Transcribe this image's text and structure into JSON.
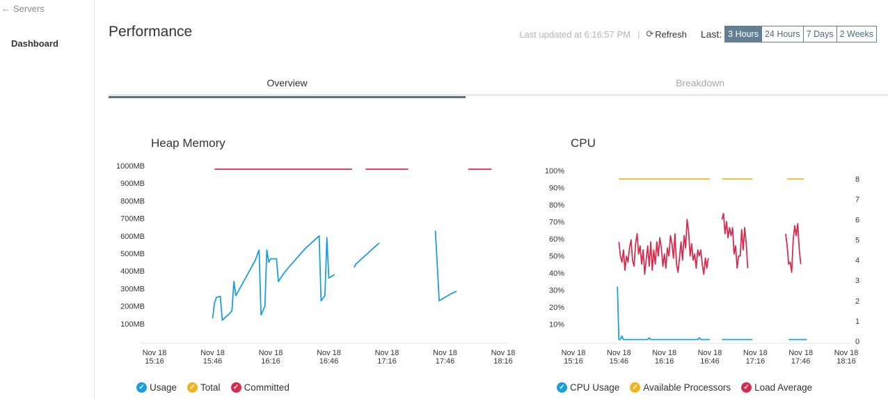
{
  "sidebar": {
    "back_label": "Servers",
    "dashboard_label": "Dashboard"
  },
  "header": {
    "title": "Performance",
    "last_updated": "Last updated at 6:16:57 PM",
    "separator": "|",
    "refresh_label": "Refresh",
    "last_label": "Last:",
    "ranges": [
      "3 Hours",
      "24 Hours",
      "7 Days",
      "2 Weeks"
    ],
    "active_range": "3 Hours"
  },
  "tabs": {
    "overview": "Overview",
    "breakdown": "Breakdown",
    "active": "Overview"
  },
  "colors": {
    "usage": "#1a9fdc",
    "total": "#f0b323",
    "committed": "#d62c4f",
    "active_accent": "#627f94"
  },
  "charts": {
    "heap": {
      "title": "Heap Memory",
      "y_ticks": [
        "1000MB",
        "900MB",
        "800MB",
        "700MB",
        "600MB",
        "500MB",
        "400MB",
        "300MB",
        "200MB",
        "100MB"
      ],
      "x_ticks": [
        [
          "Nov 18",
          "15:16"
        ],
        [
          "Nov 18",
          "15:46"
        ],
        [
          "Nov 18",
          "16:16"
        ],
        [
          "Nov 18",
          "16:46"
        ],
        [
          "Nov 18",
          "17:16"
        ],
        [
          "Nov 18",
          "17:46"
        ],
        [
          "Nov 18",
          "18:16"
        ]
      ],
      "legend": [
        "Usage",
        "Total",
        "Committed"
      ]
    },
    "cpu": {
      "title": "CPU",
      "y_ticks_left": [
        "100%",
        "90%",
        "80%",
        "70%",
        "60%",
        "50%",
        "40%",
        "30%",
        "20%",
        "10%"
      ],
      "y_ticks_right": [
        "8",
        "7",
        "6",
        "5",
        "4",
        "3",
        "2",
        "1",
        "0"
      ],
      "x_ticks": [
        [
          "Nov 18",
          "15:16"
        ],
        [
          "Nov 18",
          "15:46"
        ],
        [
          "Nov 18",
          "16:16"
        ],
        [
          "Nov 18",
          "16:46"
        ],
        [
          "Nov 18",
          "17:16"
        ],
        [
          "Nov 18",
          "17:46"
        ],
        [
          "Nov 18",
          "18:16"
        ]
      ],
      "legend": [
        "CPU Usage",
        "Available Processors",
        "Load Average"
      ]
    }
  },
  "chart_data": [
    {
      "type": "line",
      "title": "Heap Memory",
      "x_range": [
        "15:16",
        "18:16"
      ],
      "ylim": [
        0,
        1000
      ],
      "series": [
        {
          "name": "Usage",
          "color": "#1a9fdc",
          "segments": [
            [
              [
                "15:46",
                130
              ],
              [
                "15:47",
                220
              ],
              [
                "15:48",
                250
              ],
              [
                "15:50",
                255
              ],
              [
                "15:51",
                120
              ],
              [
                "15:53",
                140
              ],
              [
                "15:55",
                160
              ],
              [
                "15:56",
                175
              ],
              [
                "15:57",
                340
              ],
              [
                "15:58",
                260
              ],
              [
                "16:00",
                300
              ],
              [
                "16:03",
                360
              ],
              [
                "16:05",
                400
              ],
              [
                "16:08",
                460
              ],
              [
                "16:10",
                520
              ],
              [
                "16:11",
                150
              ],
              [
                "16:13",
                200
              ],
              [
                "16:14",
                520
              ],
              [
                "16:15",
                450
              ],
              [
                "16:16",
                470
              ],
              [
                "16:19",
                470
              ],
              [
                "16:20",
                340
              ],
              [
                "16:23",
                390
              ],
              [
                "16:26",
                430
              ],
              [
                "16:30",
                480
              ],
              [
                "16:34",
                530
              ],
              [
                "16:38",
                570
              ],
              [
                "16:41",
                600
              ],
              [
                "16:42",
                230
              ],
              [
                "16:44",
                260
              ],
              [
                "16:45",
                590
              ],
              [
                "16:46",
                360
              ],
              [
                "16:49",
                380
              ]
            ],
            [
              [
                "16:59",
                420
              ],
              [
                "17:00",
                440
              ],
              [
                "17:03",
                470
              ],
              [
                "17:06",
                500
              ],
              [
                "17:09",
                530
              ],
              [
                "17:12",
                560
              ]
            ],
            [
              [
                "17:41",
                630
              ],
              [
                "17:43",
                230
              ],
              [
                "17:46",
                250
              ],
              [
                "17:49",
                270
              ],
              [
                "17:52",
                285
              ]
            ]
          ]
        },
        {
          "name": "Total",
          "color": "#f0b323",
          "segments": []
        },
        {
          "name": "Committed",
          "color": "#d62c4f",
          "segments": [
            [
              [
                "15:47",
                980
              ],
              [
                "16:58",
                980
              ]
            ],
            [
              [
                "17:05",
                980
              ],
              [
                "17:27",
                980
              ]
            ],
            [
              [
                "17:58",
                980
              ],
              [
                "18:10",
                980
              ]
            ]
          ]
        }
      ]
    },
    {
      "type": "line",
      "title": "CPU",
      "x_range": [
        "15:16",
        "18:16"
      ],
      "ylim_left": [
        0,
        100
      ],
      "ylim_right": [
        0,
        8
      ],
      "series": [
        {
          "name": "CPU Usage",
          "color": "#1a9fdc",
          "axis": "left",
          "segments": [
            [
              [
                "15:45",
                32
              ],
              [
                "15:46",
                1
              ],
              [
                "15:47",
                1
              ],
              [
                "15:48",
                3
              ],
              [
                "15:49",
                1
              ],
              [
                "15:52",
                1
              ],
              [
                "16:05",
                1
              ],
              [
                "16:06",
                2
              ],
              [
                "16:07",
                1
              ],
              [
                "16:30",
                1
              ],
              [
                "16:38",
                1
              ],
              [
                "16:39",
                2
              ],
              [
                "16:40",
                1
              ],
              [
                "16:46",
                1
              ]
            ],
            [
              [
                "16:54",
                1
              ],
              [
                "17:14",
                1
              ]
            ],
            [
              [
                "17:38",
                1
              ],
              [
                "17:50",
                1
              ]
            ]
          ]
        },
        {
          "name": "Available Processors",
          "color": "#f0b323",
          "axis": "right",
          "segments": [
            [
              [
                "15:46",
                8
              ],
              [
                "16:46",
                8
              ]
            ],
            [
              [
                "16:54",
                8
              ],
              [
                "17:14",
                8
              ]
            ],
            [
              [
                "17:37",
                8
              ],
              [
                "17:48",
                8
              ]
            ]
          ]
        },
        {
          "name": "Load Average",
          "color": "#d62c4f",
          "axis": "right",
          "segments": [
            [
              [
                "15:46",
                4.9
              ],
              [
                "15:47",
                4.2
              ],
              [
                "15:48",
                3.9
              ],
              [
                "15:49",
                4.5
              ],
              [
                "15:50",
                3.5
              ],
              [
                "15:51",
                4.2
              ],
              [
                "15:52",
                3.9
              ],
              [
                "15:53",
                4.6
              ],
              [
                "15:54",
                5.0
              ],
              [
                "15:55",
                4.0
              ],
              [
                "15:56",
                3.7
              ],
              [
                "15:57",
                4.8
              ],
              [
                "15:58",
                5.3
              ],
              [
                "15:59",
                4.3
              ],
              [
                "16:00",
                4.7
              ],
              [
                "16:01",
                3.8
              ],
              [
                "16:02",
                4.5
              ],
              [
                "16:03",
                3.3
              ],
              [
                "16:04",
                4.0
              ],
              [
                "16:05",
                4.7
              ],
              [
                "16:06",
                3.7
              ],
              [
                "16:07",
                4.9
              ],
              [
                "16:08",
                3.5
              ],
              [
                "16:09",
                4.5
              ],
              [
                "16:10",
                3.8
              ],
              [
                "16:11",
                4.9
              ],
              [
                "16:12",
                4.2
              ],
              [
                "16:13",
                5.1
              ],
              [
                "16:14",
                4.6
              ],
              [
                "16:15",
                3.7
              ],
              [
                "16:16",
                4.3
              ],
              [
                "16:17",
                3.6
              ],
              [
                "16:18",
                4.6
              ],
              [
                "16:19",
                4.2
              ],
              [
                "16:20",
                5.2
              ],
              [
                "16:21",
                4.8
              ],
              [
                "16:22",
                4.1
              ],
              [
                "16:23",
                5.3
              ],
              [
                "16:24",
                3.8
              ],
              [
                "16:25",
                3.4
              ],
              [
                "16:26",
                4.1
              ],
              [
                "16:27",
                4.9
              ],
              [
                "16:28",
                4.0
              ],
              [
                "16:29",
                5.2
              ],
              [
                "16:30",
                4.6
              ],
              [
                "16:31",
                6.0
              ],
              [
                "16:32",
                5.4
              ],
              [
                "16:33",
                4.2
              ],
              [
                "16:34",
                4.8
              ],
              [
                "16:35",
                4.0
              ],
              [
                "16:36",
                4.3
              ],
              [
                "16:37",
                3.6
              ],
              [
                "16:38",
                4.5
              ],
              [
                "16:39",
                4.2
              ],
              [
                "16:40",
                4.5
              ],
              [
                "16:41",
                3.8
              ],
              [
                "16:42",
                3.3
              ],
              [
                "16:43",
                4.1
              ],
              [
                "16:44",
                3.6
              ],
              [
                "16:45",
                4.1
              ]
            ],
            [
              [
                "16:54",
                6.0
              ],
              [
                "16:55",
                6.3
              ],
              [
                "16:56",
                5.3
              ],
              [
                "16:57",
                5.9
              ],
              [
                "16:58",
                5.1
              ],
              [
                "16:59",
                5.6
              ],
              [
                "17:00",
                5.2
              ],
              [
                "17:01",
                5.6
              ],
              [
                "17:02",
                4.3
              ],
              [
                "17:03",
                4.7
              ],
              [
                "17:04",
                3.6
              ],
              [
                "17:05",
                4.2
              ],
              [
                "17:06",
                4.2
              ],
              [
                "17:07",
                5.5
              ],
              [
                "17:08",
                4.5
              ],
              [
                "17:09",
                5.6
              ],
              [
                "17:10",
                4.8
              ],
              [
                "17:11",
                3.6
              ]
            ],
            [
              [
                "17:36",
                5.3
              ],
              [
                "17:37",
                4.7
              ],
              [
                "17:38",
                3.8
              ],
              [
                "17:39",
                3.9
              ],
              [
                "17:40",
                3.4
              ],
              [
                "17:41",
                5.0
              ],
              [
                "17:42",
                5.7
              ],
              [
                "17:43",
                5.2
              ],
              [
                "17:44",
                5.8
              ],
              [
                "17:45",
                4.5
              ],
              [
                "17:46",
                3.8
              ]
            ]
          ]
        }
      ]
    }
  ]
}
